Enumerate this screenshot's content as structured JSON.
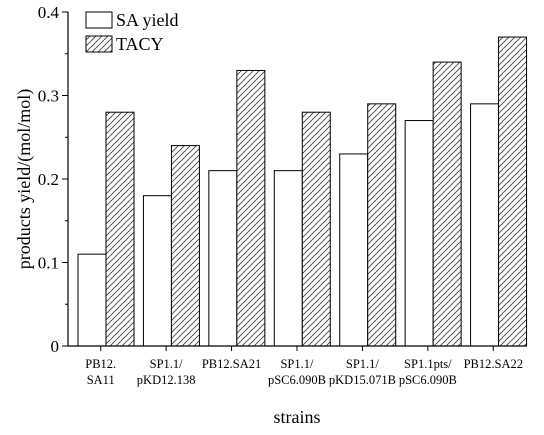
{
  "chart_data": {
    "type": "bar",
    "title": "",
    "xlabel": "strains",
    "ylabel": "products yield/(mol/mol)",
    "ylim": [
      0,
      0.4
    ],
    "yticks": [
      "0",
      "0.1",
      "0.2",
      "0.3",
      "0.4"
    ],
    "ytick_values": [
      0,
      0.1,
      0.2,
      0.3,
      0.4
    ],
    "grid": false,
    "legend_position": "top-left",
    "categories": [
      [
        "PB12.",
        "SA11"
      ],
      [
        "SP1.1/",
        "pKD12.138"
      ],
      [
        "PB12.SA21"
      ],
      [
        "SP1.1/",
        "pSC6.090B"
      ],
      [
        "SP1.1/",
        "pKD15.071B"
      ],
      [
        "SP1.1pts/",
        "pSC6.090B"
      ],
      [
        "PB12.SA22"
      ]
    ],
    "series": [
      {
        "name": "SA yield",
        "fill": "none",
        "values": [
          0.11,
          0.18,
          0.21,
          0.21,
          0.23,
          0.27,
          0.29
        ]
      },
      {
        "name": "TACY",
        "fill": "hatched",
        "values": [
          0.28,
          0.24,
          0.33,
          0.28,
          0.29,
          0.34,
          0.37
        ]
      }
    ],
    "colors": {
      "axis": "#000000",
      "bar_fill": "#ffffff",
      "hatch": "#444444"
    }
  }
}
